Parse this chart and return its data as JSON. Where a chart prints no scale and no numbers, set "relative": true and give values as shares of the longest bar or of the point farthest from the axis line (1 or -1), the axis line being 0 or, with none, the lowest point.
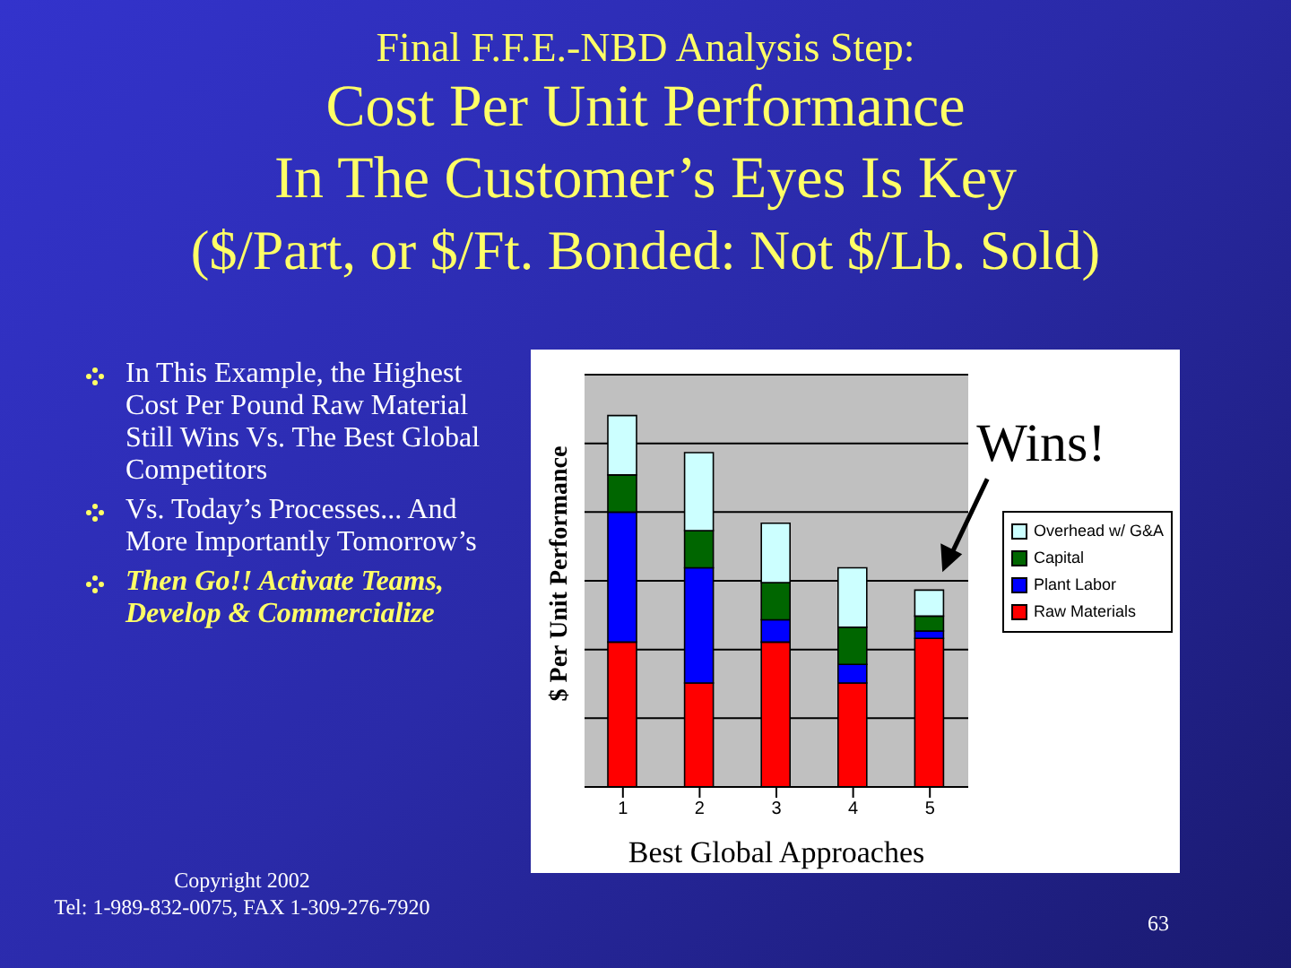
{
  "chart_data": {
    "type": "bar",
    "title": "Final F.F.E.-NBD Analysis Step:",
    "subtitle": "Cost Per Unit Performance\nIn The Customer’s Eyes Is Key\n($/Part, or $/Ft. Bonded:  Not $/Lb. Sold)",
    "xlabel": "Best Global Approaches",
    "ylabel": "$ Per Unit Performance",
    "categories": [
      "1",
      "2",
      "3",
      "4",
      "5"
    ],
    "stacked": true,
    "relative": true,
    "grid": "y",
    "legend": "right",
    "series": [
      {
        "name": "Raw Materials",
        "color": "#ff0000",
        "values": [
          0.39,
          0.28,
          0.39,
          0.28,
          0.4
        ]
      },
      {
        "name": "Plant Labor",
        "color": "#0000ff",
        "values": [
          0.35,
          0.31,
          0.06,
          0.05,
          0.02
        ]
      },
      {
        "name": "Capital",
        "color": "#006600",
        "values": [
          0.1,
          0.1,
          0.1,
          0.1,
          0.04
        ]
      },
      {
        "name": "Overhead w/ G&A",
        "color": "#ccffff",
        "values": [
          0.16,
          0.21,
          0.16,
          0.16,
          0.07
        ]
      }
    ],
    "annotations": [
      {
        "text": "Wins!",
        "x": "5",
        "y": 0.53
      },
      "In This Example, the Highest Cost Per Pound Raw Material Still Wins Vs. The Best Global Competitors",
      "Vs. Today’s Processes... And More Importantly Tomorrow’s",
      "Then Go!!  Activate Teams, Develop & Commercialize",
      "Copyright 2002",
      "Tel:  1-989-832-0075,   FAX 1-309-276-7920",
      "63"
    ]
  }
}
